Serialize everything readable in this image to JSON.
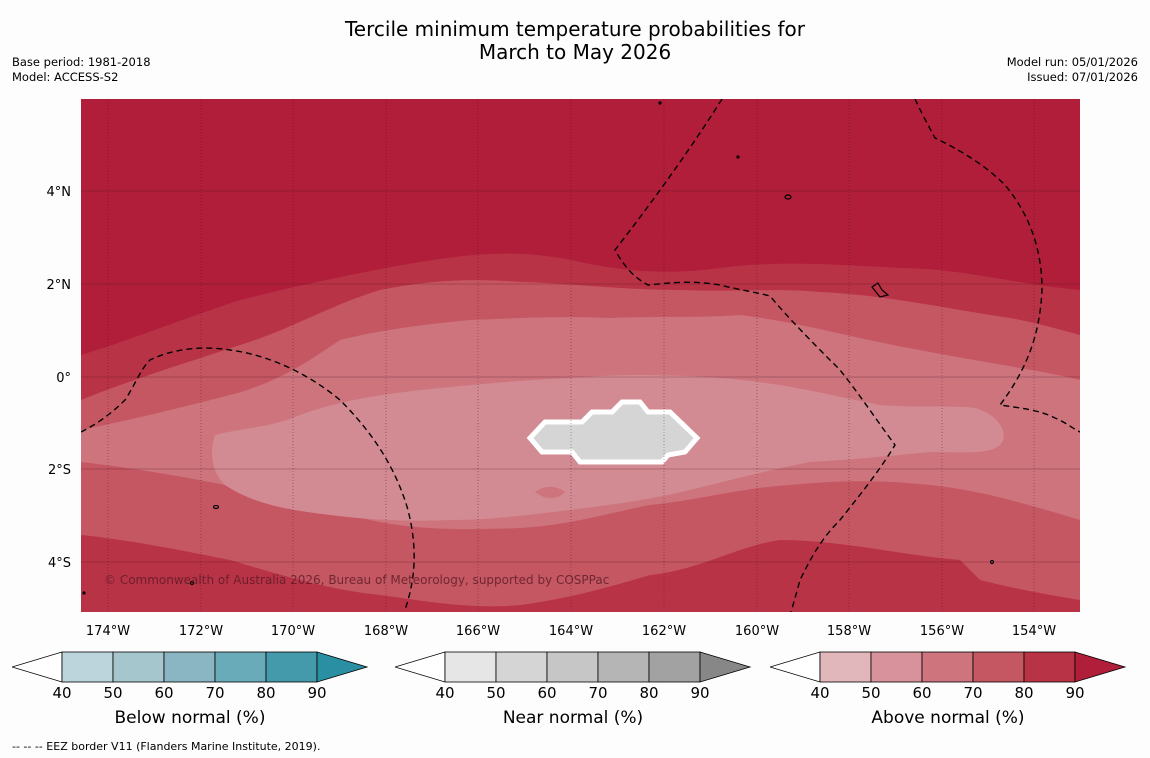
{
  "title": {
    "line1": "Tercile minimum temperature probabilities for",
    "line2": "March to May 2026"
  },
  "meta_left": {
    "base_period": "Base period: 1981-2018",
    "model": "Model: ACCESS-S2"
  },
  "meta_right": {
    "model_run": "Model run: 05/01/2026",
    "issued": "Issued: 07/01/2026"
  },
  "map": {
    "lat_labels": [
      "4°N",
      "2°N",
      "0°",
      "2°S",
      "4°S"
    ],
    "lon_labels": [
      "174°W",
      "172°W",
      "170°W",
      "168°W",
      "166°W",
      "164°W",
      "162°W",
      "160°W",
      "158°W",
      "156°W",
      "154°W"
    ],
    "copyright": "© Commonwealth of Australia 2026, Bureau of Meteorology, supported by COSPPac"
  },
  "colorbars": [
    {
      "label": "Below normal (%)",
      "ticks": [
        "40",
        "50",
        "60",
        "70",
        "80",
        "90"
      ],
      "colors": [
        "#ffffff",
        "#bcd4db",
        "#a5c6cc",
        "#8ab5c2",
        "#6aabba",
        "#4499aa",
        "#2a8fa3"
      ]
    },
    {
      "label": "Near normal (%)",
      "ticks": [
        "40",
        "50",
        "60",
        "70",
        "80",
        "90"
      ],
      "colors": [
        "#ffffff",
        "#e6e6e6",
        "#d5d5d5",
        "#c6c6c6",
        "#b5b5b5",
        "#a2a2a2",
        "#878787"
      ]
    },
    {
      "label": "Above normal (%)",
      "ticks": [
        "40",
        "50",
        "60",
        "70",
        "80",
        "90"
      ],
      "colors": [
        "#ffffff",
        "#e2b7bc",
        "#d8929b",
        "#cd747d",
        "#c55763",
        "#b93347",
        "#b01e3a"
      ]
    }
  ],
  "footnote": "--  --  -- EEZ border V11 (Flanders Marine Institute, 2019)."
}
